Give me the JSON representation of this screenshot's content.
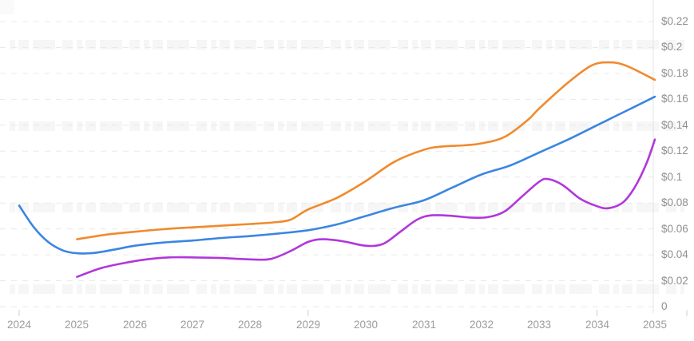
{
  "chart_data": {
    "type": "line",
    "title": "",
    "legend": "none",
    "grid": "dashed-horizontal",
    "x_axis": {
      "labels": [
        "2024",
        "2025",
        "2026",
        "2027",
        "2028",
        "2029",
        "2030",
        "2031",
        "2032",
        "2033",
        "2034",
        "2035"
      ],
      "range": [
        2024,
        2035
      ],
      "major_tick_years": [
        2024,
        2029,
        2034
      ]
    },
    "y_axis": {
      "side": "right",
      "unit": "USD",
      "labels": [
        "$0.22",
        "$0.2",
        "$0.18",
        "$0.16",
        "$0.14",
        "$0.12",
        "$0.1",
        "$0.08",
        "$0.06",
        "$0.04",
        "$0.02",
        "0"
      ],
      "values": [
        0.22,
        0.2,
        0.18,
        0.16,
        0.14,
        0.12,
        0.1,
        0.08,
        0.06,
        0.04,
        0.02,
        0
      ],
      "range": [
        0,
        0.22
      ]
    },
    "series": [
      {
        "name": "series-blue",
        "color": "#3b86e0",
        "points": [
          [
            2024,
            0.078
          ],
          [
            2024.25,
            0.0615
          ],
          [
            2024.5,
            0.05
          ],
          [
            2024.75,
            0.0435
          ],
          [
            2025,
            0.0412
          ],
          [
            2025.3,
            0.0415
          ],
          [
            2025.7,
            0.0445
          ],
          [
            2026,
            0.047
          ],
          [
            2026.5,
            0.0495
          ],
          [
            2027,
            0.051
          ],
          [
            2027.5,
            0.053
          ],
          [
            2028,
            0.0545
          ],
          [
            2028.5,
            0.0565
          ],
          [
            2029,
            0.059
          ],
          [
            2029.5,
            0.0635
          ],
          [
            2030,
            0.07
          ],
          [
            2030.5,
            0.0765
          ],
          [
            2031,
            0.082
          ],
          [
            2031.5,
            0.092
          ],
          [
            2032,
            0.102
          ],
          [
            2032.5,
            0.109
          ],
          [
            2033,
            0.119
          ],
          [
            2033.5,
            0.129
          ],
          [
            2034,
            0.14
          ],
          [
            2034.5,
            0.151
          ],
          [
            2035,
            0.162
          ]
        ]
      },
      {
        "name": "series-orange",
        "color": "#f08a2d",
        "points": [
          [
            2025,
            0.052
          ],
          [
            2025.5,
            0.0555
          ],
          [
            2026,
            0.0578
          ],
          [
            2026.5,
            0.0598
          ],
          [
            2027,
            0.0612
          ],
          [
            2027.5,
            0.0625
          ],
          [
            2028,
            0.0638
          ],
          [
            2028.4,
            0.065
          ],
          [
            2028.7,
            0.0672
          ],
          [
            2029,
            0.075
          ],
          [
            2029.5,
            0.084
          ],
          [
            2030,
            0.097
          ],
          [
            2030.5,
            0.112
          ],
          [
            2031,
            0.121
          ],
          [
            2031.3,
            0.1235
          ],
          [
            2031.7,
            0.1245
          ],
          [
            2032,
            0.126
          ],
          [
            2032.4,
            0.131
          ],
          [
            2032.8,
            0.144
          ],
          [
            2033,
            0.153
          ],
          [
            2033.5,
            0.173
          ],
          [
            2033.9,
            0.186
          ],
          [
            2034.2,
            0.1885
          ],
          [
            2034.5,
            0.186
          ],
          [
            2035,
            0.175
          ]
        ]
      },
      {
        "name": "series-purple",
        "color": "#b137db",
        "points": [
          [
            2025,
            0.023
          ],
          [
            2025.4,
            0.0295
          ],
          [
            2025.8,
            0.0335
          ],
          [
            2026.2,
            0.0365
          ],
          [
            2026.6,
            0.038
          ],
          [
            2027,
            0.038
          ],
          [
            2027.5,
            0.0375
          ],
          [
            2028,
            0.0365
          ],
          [
            2028.35,
            0.0368
          ],
          [
            2028.7,
            0.043
          ],
          [
            2029,
            0.05
          ],
          [
            2029.25,
            0.052
          ],
          [
            2029.6,
            0.0505
          ],
          [
            2030,
            0.047
          ],
          [
            2030.3,
            0.0485
          ],
          [
            2030.6,
            0.058
          ],
          [
            2030.9,
            0.0675
          ],
          [
            2031.15,
            0.0705
          ],
          [
            2031.5,
            0.07
          ],
          [
            2031.8,
            0.0688
          ],
          [
            2032.1,
            0.069
          ],
          [
            2032.4,
            0.0735
          ],
          [
            2032.7,
            0.085
          ],
          [
            2033,
            0.0965
          ],
          [
            2033.15,
            0.0985
          ],
          [
            2033.4,
            0.094
          ],
          [
            2033.7,
            0.0835
          ],
          [
            2034,
            0.0775
          ],
          [
            2034.2,
            0.076
          ],
          [
            2034.45,
            0.0805
          ],
          [
            2034.65,
            0.092
          ],
          [
            2034.85,
            0.11
          ],
          [
            2035,
            0.129
          ]
        ]
      }
    ]
  },
  "colors": {
    "background": "#ffffff",
    "gridline": "#e9e9e9",
    "axis_line": "#e4e4e4",
    "tick": "#cfcfcf",
    "y_label_text": "#8f8f8f",
    "x_label_text": "#9c9c9c",
    "watermark": "#f5f5f5",
    "series_blue": "#3b86e0",
    "series_orange": "#f08a2d",
    "series_purple": "#b137db"
  }
}
